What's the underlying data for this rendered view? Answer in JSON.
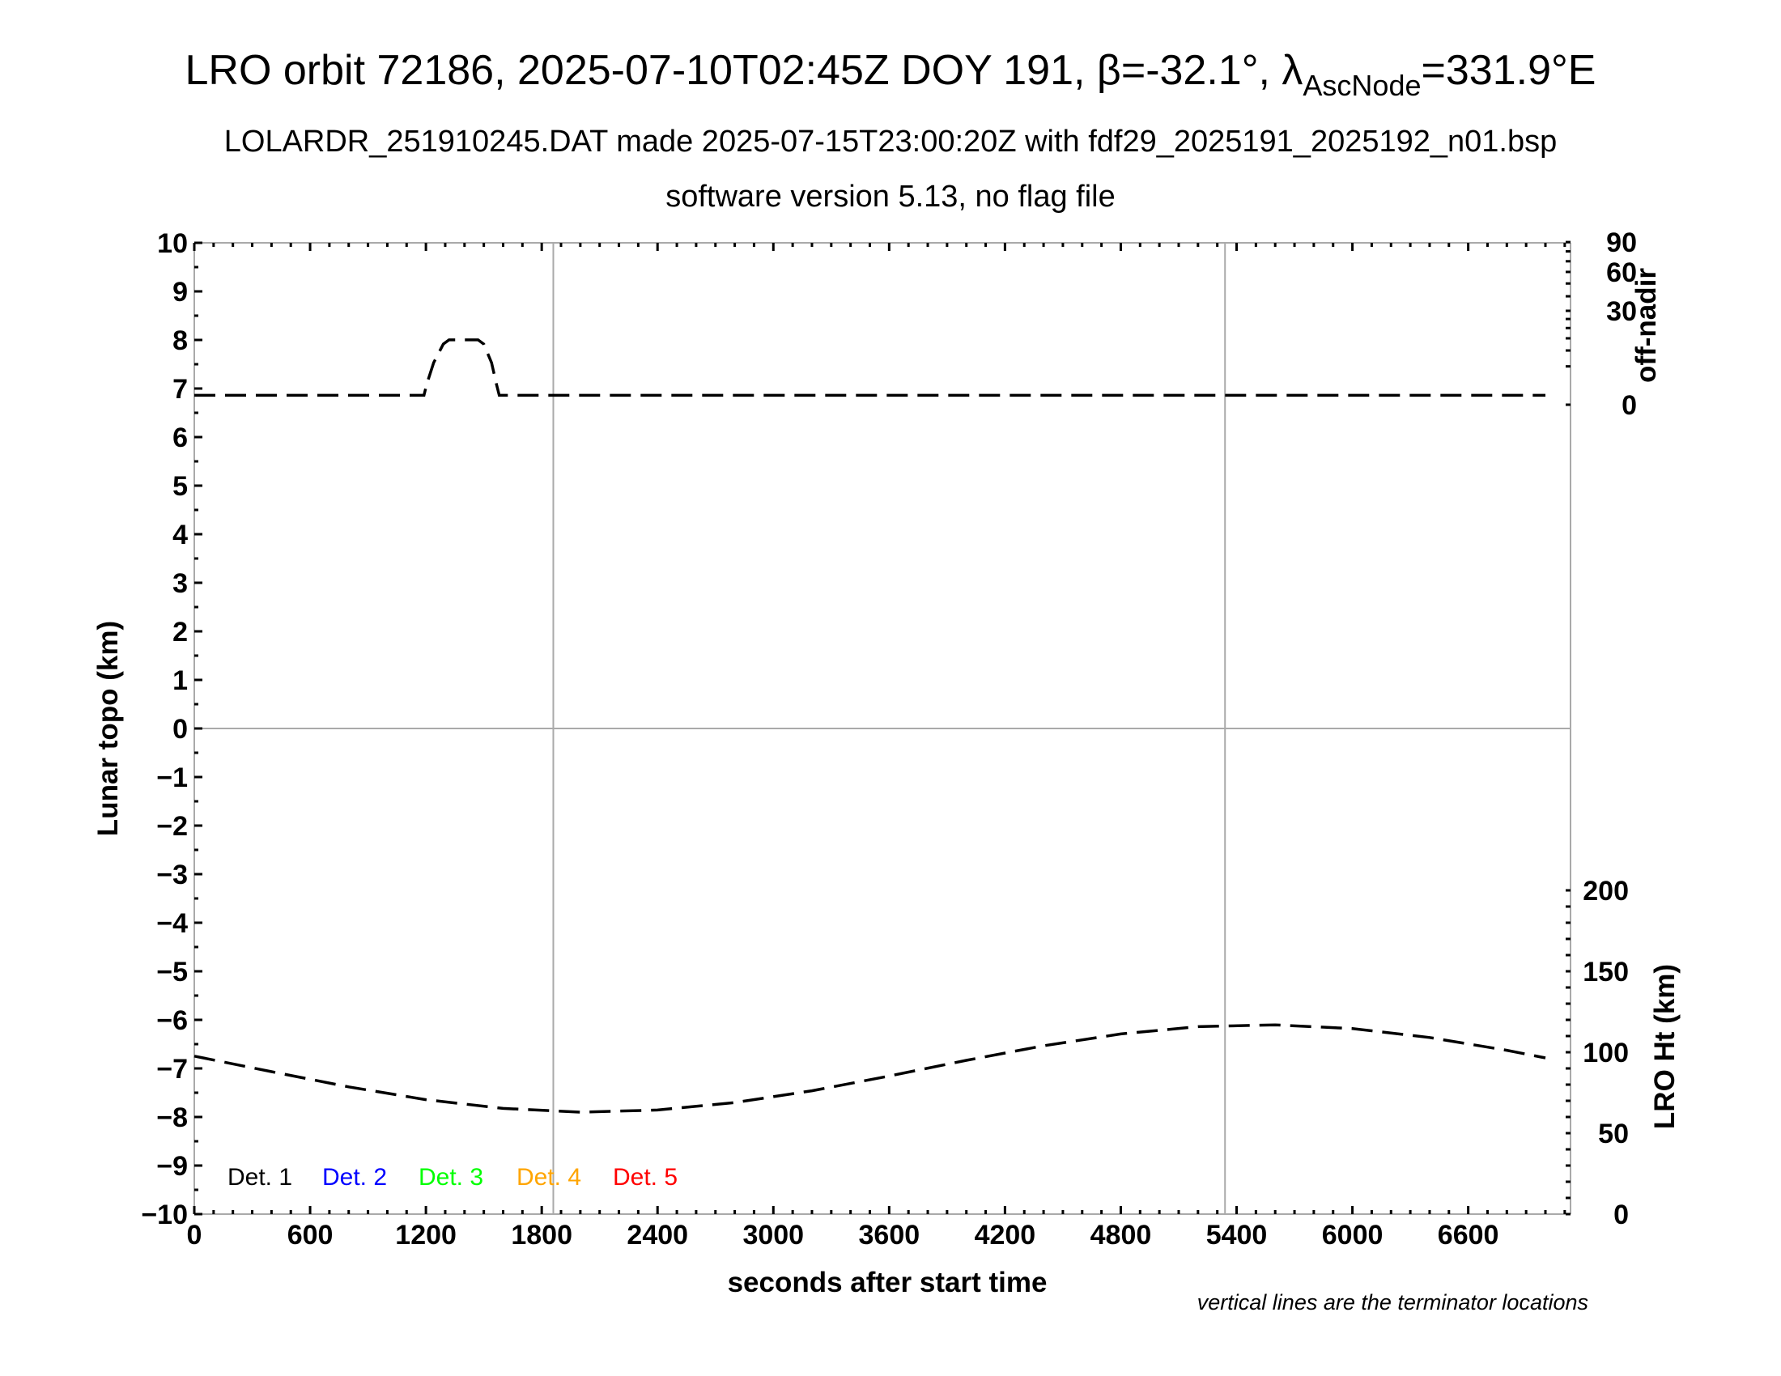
{
  "chart_data": {
    "type": "line",
    "title": {
      "main": "LRO orbit 72186, 2025-07-10T02:45Z DOY 191, β=-32.1°, λ",
      "sub": "AscNode",
      "tail": "=331.9°E"
    },
    "subtitle": "LOLARDR_251910245.DAT made 2025-07-15T23:00:20Z with fdf29_2025191_2025192_n01.bsp",
    "subtitle2": "software version 5.13, no flag file",
    "xlabel": "seconds after start time",
    "ylabel": "Lunar topo (km)",
    "ylabel_right_top": "off-nadir",
    "ylabel_right_bottom": "LRO Ht (km)",
    "note": "vertical lines are the terminator locations",
    "xlim": [
      0,
      7130
    ],
    "ylim": [
      -10,
      10
    ],
    "x_ticks": [
      "0",
      "600",
      "1200",
      "1800",
      "2400",
      "3000",
      "3600",
      "4200",
      "4800",
      "5400",
      "6000",
      "6600"
    ],
    "y_ticks": [
      "10",
      "9",
      "8",
      "7",
      "6",
      "5",
      "4",
      "3",
      "2",
      "1",
      "0",
      "−1",
      "−2",
      "−3",
      "−4",
      "−5",
      "−6",
      "−7",
      "−8",
      "−9",
      "−10"
    ],
    "offnadir_scale": "sqrt",
    "offnadir_ticks": [
      "0",
      "30",
      "60",
      "90"
    ],
    "ht_ticks": [
      "0",
      "50",
      "100",
      "150",
      "200"
    ],
    "ht_range": [
      0,
      200
    ],
    "terminators": [
      1860,
      5340
    ],
    "zero_line": 0,
    "legend": [
      {
        "label": "Det. 1",
        "color": "#000000"
      },
      {
        "label": "Det. 2",
        "color": "#0000ff"
      },
      {
        "label": "Det. 3",
        "color": "#00ff00"
      },
      {
        "label": "Det. 4",
        "color": "#ffa500"
      },
      {
        "label": "Det. 5",
        "color": "#ff0000"
      }
    ],
    "legend_placement": "bottom-left",
    "series": [
      {
        "axis": "off-nadir (deg)",
        "style": "dashed",
        "color": "#000000",
        "points": [
          [
            0,
            0.3
          ],
          [
            1190,
            0.3
          ],
          [
            1205,
            1.5
          ],
          [
            1240,
            6
          ],
          [
            1290,
            12.5
          ],
          [
            1320,
            14.3
          ],
          [
            1470,
            14.3
          ],
          [
            1500,
            12.5
          ],
          [
            1540,
            6
          ],
          [
            1565,
            1.5
          ],
          [
            1580,
            0.3
          ],
          [
            7000,
            0.3
          ]
        ]
      },
      {
        "axis": "LRO Ht (km)",
        "style": "dashed",
        "color": "#000000",
        "points": [
          [
            0,
            97.6
          ],
          [
            400,
            88.0
          ],
          [
            800,
            78.6
          ],
          [
            1200,
            70.7
          ],
          [
            1600,
            65.3
          ],
          [
            2000,
            63.0
          ],
          [
            2400,
            64.3
          ],
          [
            2800,
            68.9
          ],
          [
            3200,
            76.2
          ],
          [
            3600,
            85.3
          ],
          [
            4000,
            95.0
          ],
          [
            4400,
            104.0
          ],
          [
            4800,
            111.3
          ],
          [
            5200,
            115.8
          ],
          [
            5600,
            116.9
          ],
          [
            6000,
            114.6
          ],
          [
            6400,
            109.1
          ],
          [
            6800,
            101.2
          ],
          [
            7000,
            96.5
          ]
        ]
      }
    ]
  }
}
